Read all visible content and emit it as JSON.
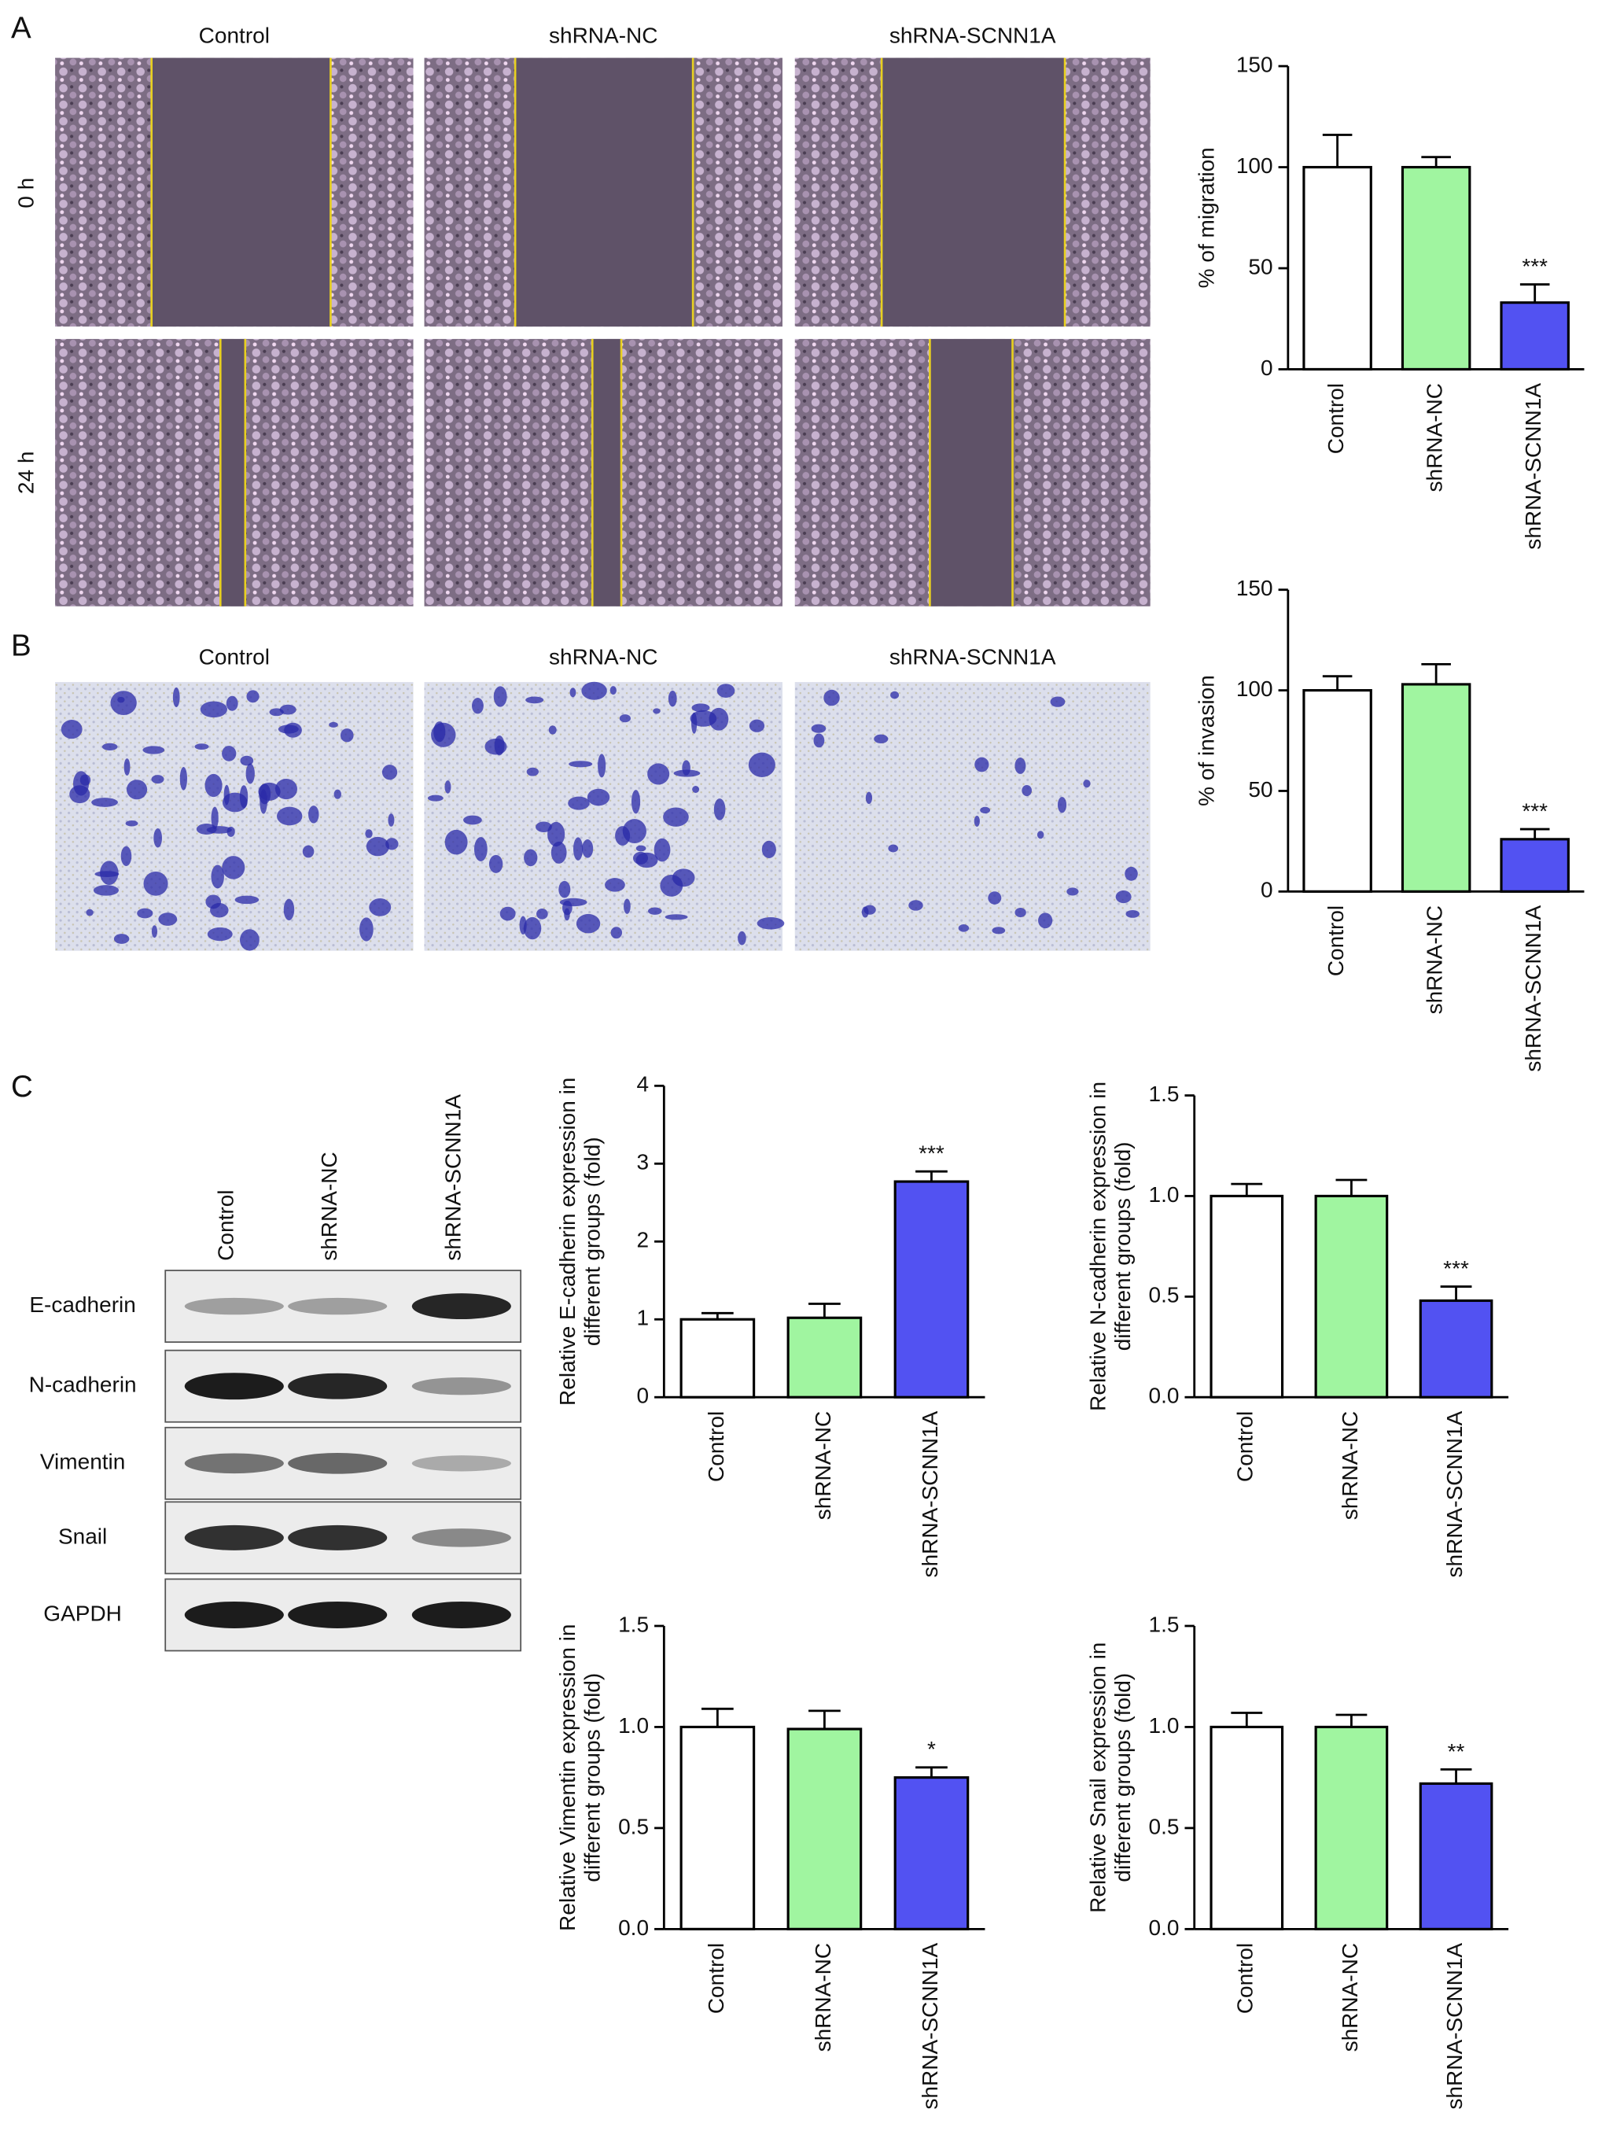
{
  "panels": {
    "A": {
      "label": "A",
      "columns": [
        "Control",
        "shRNA-NC",
        "shRNA-SCNN1A"
      ],
      "rows": [
        "0 h",
        "24 h"
      ]
    },
    "B": {
      "label": "B",
      "columns": [
        "Control",
        "shRNA-NC",
        "shRNA-SCNN1A"
      ]
    },
    "C": {
      "label": "C",
      "lanes": [
        "Control",
        "shRNA-NC",
        "shRNA-SCNN1A"
      ],
      "proteins": [
        "E-cadherin",
        "N-cadherin",
        "Vimentin",
        "Snail",
        "GAPDH"
      ]
    }
  },
  "chart_data": [
    {
      "type": "bar",
      "ylabel": "% of migration",
      "categories": [
        "Control",
        "shRNA-NC",
        "shRNA-SCNN1A"
      ],
      "values": [
        100,
        100,
        33
      ],
      "errors": [
        16,
        5,
        9
      ],
      "colors": [
        "#ffffff",
        "#a0f5a0",
        "#5252f2"
      ],
      "value_annotations": [
        null,
        null,
        "***"
      ],
      "ylim": [
        0,
        150
      ],
      "yticks": [
        0,
        50,
        100,
        150
      ]
    },
    {
      "type": "bar",
      "ylabel": "% of invasion",
      "categories": [
        "Control",
        "shRNA-NC",
        "shRNA-SCNN1A"
      ],
      "values": [
        100,
        103,
        26
      ],
      "errors": [
        7,
        10,
        5
      ],
      "colors": [
        "#ffffff",
        "#a0f5a0",
        "#5252f2"
      ],
      "value_annotations": [
        null,
        null,
        "***"
      ],
      "ylim": [
        0,
        150
      ],
      "yticks": [
        0,
        50,
        100,
        150
      ]
    },
    {
      "type": "bar",
      "ylabel": [
        "Relative E-cadherin expression in",
        "different groups (fold)"
      ],
      "categories": [
        "Control",
        "shRNA-NC",
        "shRNA-SCNN1A"
      ],
      "values": [
        1.0,
        1.02,
        2.77
      ],
      "errors": [
        0.08,
        0.18,
        0.13
      ],
      "colors": [
        "#ffffff",
        "#a0f5a0",
        "#5252f2"
      ],
      "value_annotations": [
        null,
        null,
        "***"
      ],
      "ylim": [
        0,
        4
      ],
      "yticks": [
        0,
        1,
        2,
        3,
        4
      ]
    },
    {
      "type": "bar",
      "ylabel": [
        "Relative N-cadherin expression in",
        "different groups (fold)"
      ],
      "categories": [
        "Control",
        "shRNA-NC",
        "shRNA-SCNN1A"
      ],
      "values": [
        1.0,
        1.0,
        0.48
      ],
      "errors": [
        0.06,
        0.08,
        0.07
      ],
      "colors": [
        "#ffffff",
        "#a0f5a0",
        "#5252f2"
      ],
      "value_annotations": [
        null,
        null,
        "***"
      ],
      "ylim": [
        0,
        1.5
      ],
      "yticks": [
        {
          "value": 0,
          "label": "0.0"
        },
        0.5,
        {
          "value": 1,
          "label": "1.0"
        },
        1.5
      ]
    },
    {
      "type": "bar",
      "ylabel": [
        "Relative Vimentin expression in",
        "different groups (fold)"
      ],
      "categories": [
        "Control",
        "shRNA-NC",
        "shRNA-SCNN1A"
      ],
      "values": [
        1.0,
        0.99,
        0.75
      ],
      "errors": [
        0.09,
        0.09,
        0.05
      ],
      "colors": [
        "#ffffff",
        "#a0f5a0",
        "#5252f2"
      ],
      "value_annotations": [
        null,
        null,
        "*"
      ],
      "ylim": [
        0,
        1.5
      ],
      "yticks": [
        {
          "value": 0,
          "label": "0.0"
        },
        0.5,
        {
          "value": 1,
          "label": "1.0"
        },
        1.5
      ]
    },
    {
      "type": "bar",
      "ylabel": [
        "Relative Snail expression in",
        "different groups (fold)"
      ],
      "categories": [
        "Control",
        "shRNA-NC",
        "shRNA-SCNN1A"
      ],
      "values": [
        1.0,
        1.0,
        0.72
      ],
      "errors": [
        0.07,
        0.06,
        0.07
      ],
      "colors": [
        "#ffffff",
        "#a0f5a0",
        "#5252f2"
      ],
      "value_annotations": [
        null,
        null,
        "**"
      ],
      "ylim": [
        0,
        1.5
      ],
      "yticks": [
        {
          "value": 0,
          "label": "0.0"
        },
        0.5,
        {
          "value": 1,
          "label": "1.0"
        },
        1.5
      ]
    }
  ]
}
